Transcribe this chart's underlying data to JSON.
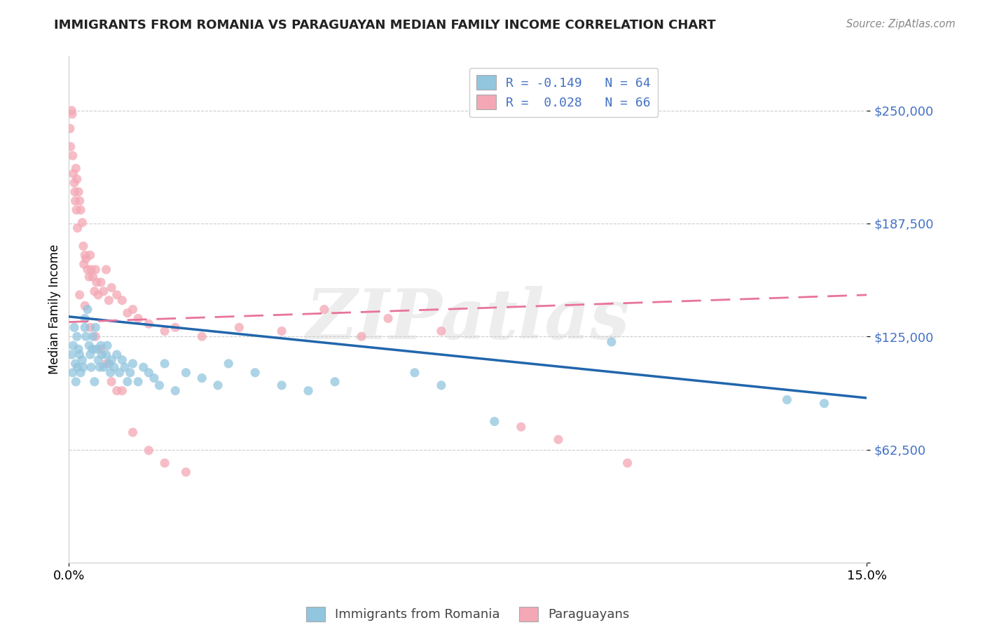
{
  "title": "IMMIGRANTS FROM ROMANIA VS PARAGUAYAN MEDIAN FAMILY INCOME CORRELATION CHART",
  "source": "Source: ZipAtlas.com",
  "ylabel": "Median Family Income",
  "yticks": [
    0,
    62500,
    125000,
    187500,
    250000
  ],
  "ytick_labels": [
    "",
    "$62,500",
    "$125,000",
    "$187,500",
    "$250,000"
  ],
  "xmin": 0.0,
  "xmax": 15.0,
  "ymin": 0,
  "ymax": 280000,
  "watermark": "ZIPatlas",
  "legend_row1": "R = -0.149   N = 64",
  "legend_row2": "R =  0.028   N = 66",
  "legend_label1": "Immigrants from Romania",
  "legend_label2": "Paraguayans",
  "romania_color": "#92c5de",
  "paraguay_color": "#f4a7b5",
  "romania_line_color": "#2166ac",
  "paraguay_line_color": "#e8749a",
  "romania_scatter_x": [
    0.05,
    0.07,
    0.08,
    0.1,
    0.12,
    0.13,
    0.15,
    0.16,
    0.18,
    0.2,
    0.22,
    0.25,
    0.27,
    0.3,
    0.3,
    0.32,
    0.35,
    0.38,
    0.4,
    0.42,
    0.44,
    0.45,
    0.48,
    0.5,
    0.52,
    0.55,
    0.58,
    0.6,
    0.62,
    0.65,
    0.7,
    0.72,
    0.75,
    0.78,
    0.8,
    0.85,
    0.9,
    0.95,
    1.0,
    1.05,
    1.1,
    1.15,
    1.2,
    1.3,
    1.4,
    1.5,
    1.6,
    1.7,
    1.8,
    2.0,
    2.2,
    2.5,
    2.8,
    3.0,
    3.5,
    4.0,
    4.5,
    5.0,
    6.5,
    7.0,
    8.0,
    10.2,
    13.5,
    14.2
  ],
  "romania_scatter_y": [
    115000,
    105000,
    120000,
    130000,
    110000,
    100000,
    125000,
    108000,
    118000,
    115000,
    105000,
    112000,
    108000,
    130000,
    135000,
    125000,
    140000,
    120000,
    115000,
    108000,
    118000,
    125000,
    100000,
    130000,
    118000,
    112000,
    108000,
    120000,
    115000,
    108000,
    115000,
    120000,
    110000,
    105000,
    112000,
    108000,
    115000,
    105000,
    112000,
    108000,
    100000,
    105000,
    110000,
    100000,
    108000,
    105000,
    102000,
    98000,
    110000,
    95000,
    105000,
    102000,
    98000,
    110000,
    105000,
    98000,
    95000,
    100000,
    105000,
    98000,
    78000,
    122000,
    90000,
    88000
  ],
  "paraguay_scatter_x": [
    0.02,
    0.03,
    0.05,
    0.06,
    0.07,
    0.08,
    0.1,
    0.11,
    0.12,
    0.13,
    0.14,
    0.15,
    0.16,
    0.18,
    0.2,
    0.22,
    0.25,
    0.27,
    0.28,
    0.3,
    0.32,
    0.35,
    0.38,
    0.4,
    0.42,
    0.45,
    0.48,
    0.5,
    0.52,
    0.55,
    0.6,
    0.65,
    0.7,
    0.75,
    0.8,
    0.9,
    1.0,
    1.1,
    1.2,
    1.3,
    1.5,
    1.8,
    2.0,
    2.5,
    3.2,
    4.0,
    4.8,
    5.5,
    6.0,
    7.0,
    8.5,
    9.2,
    10.5,
    0.2,
    0.3,
    0.4,
    0.5,
    0.6,
    0.7,
    0.8,
    0.9,
    1.0,
    1.2,
    1.5,
    1.8,
    2.2
  ],
  "paraguay_scatter_y": [
    240000,
    230000,
    250000,
    248000,
    225000,
    215000,
    210000,
    205000,
    200000,
    218000,
    195000,
    212000,
    185000,
    205000,
    200000,
    195000,
    188000,
    175000,
    165000,
    170000,
    168000,
    162000,
    158000,
    170000,
    162000,
    158000,
    150000,
    162000,
    155000,
    148000,
    155000,
    150000,
    162000,
    145000,
    152000,
    148000,
    145000,
    138000,
    140000,
    135000,
    132000,
    128000,
    130000,
    125000,
    130000,
    128000,
    140000,
    125000,
    135000,
    128000,
    75000,
    68000,
    55000,
    148000,
    142000,
    130000,
    125000,
    118000,
    110000,
    100000,
    95000,
    95000,
    72000,
    62000,
    55000,
    50000
  ],
  "romania_trend_x": [
    0.0,
    15.0
  ],
  "romania_trend_y": [
    136000,
    91000
  ],
  "paraguay_trend_x": [
    0.0,
    15.0
  ],
  "paraguay_trend_y": [
    133000,
    148000
  ]
}
